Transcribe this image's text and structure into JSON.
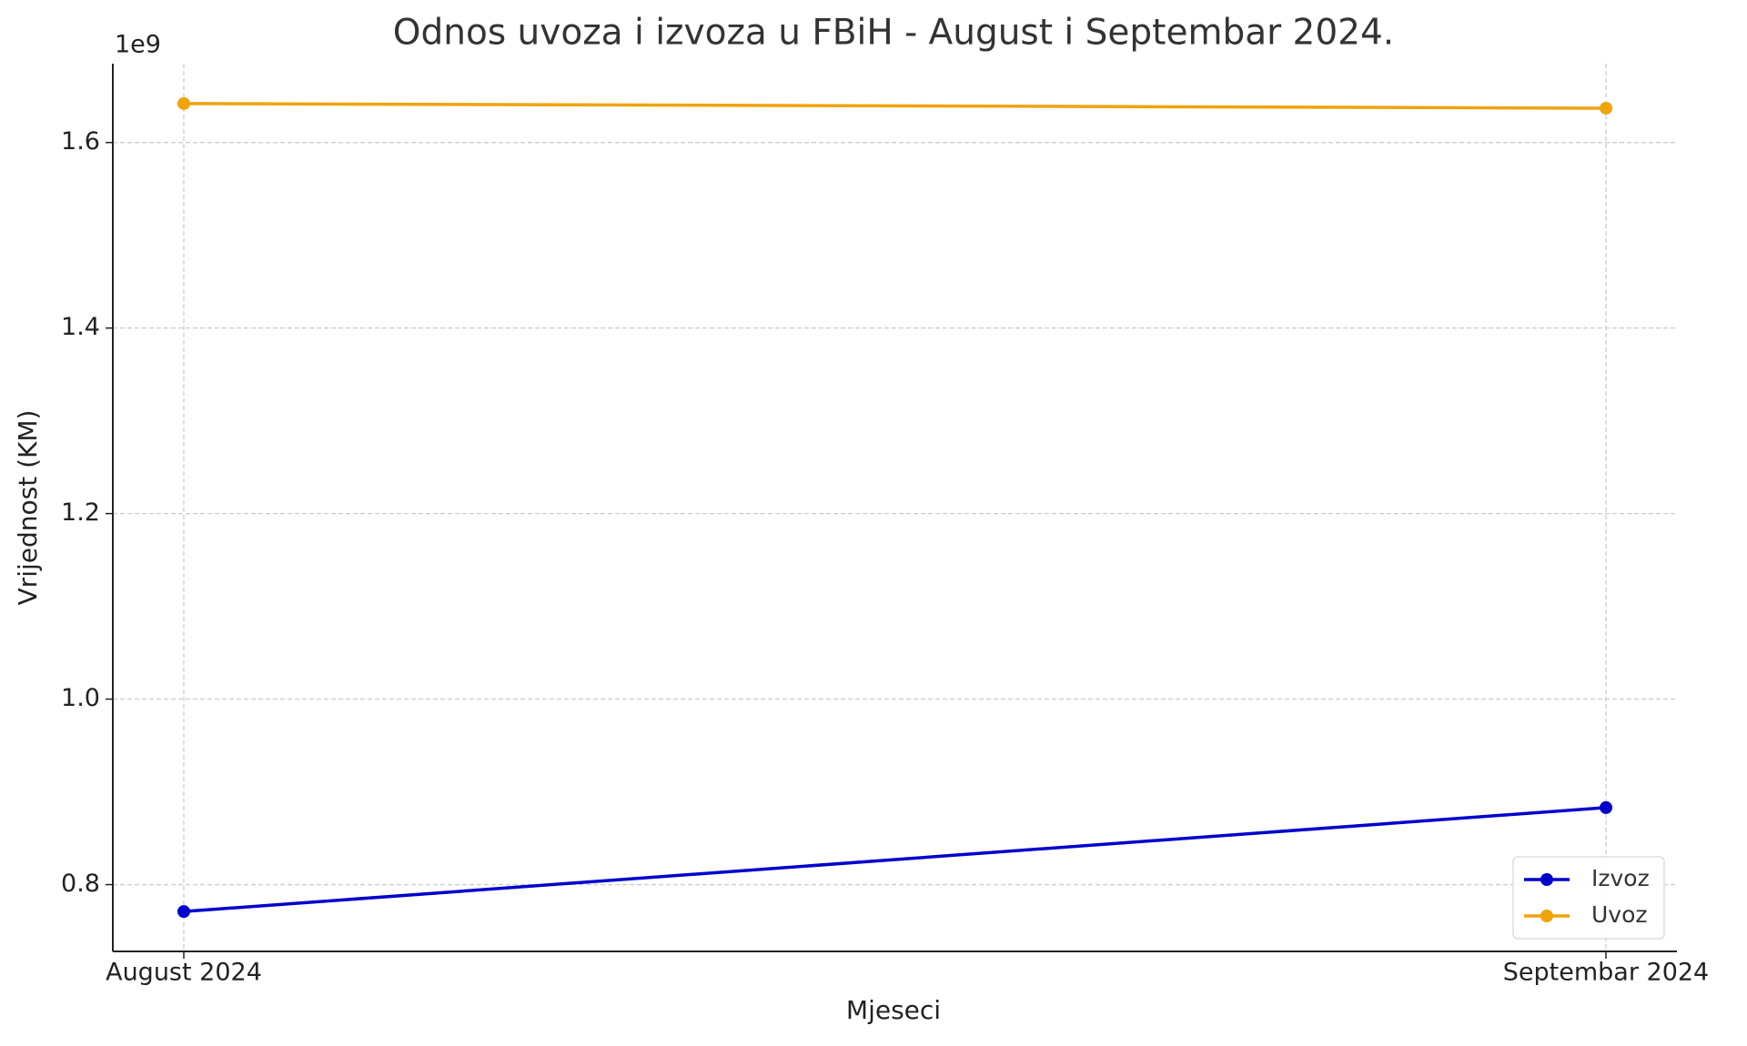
{
  "chart_data": {
    "type": "line",
    "title": "Odnos uvoza i izvoza u FBiH - August i Septembar 2024.",
    "x_label": "Mjeseci",
    "y_label": "Vrijednost (KM)",
    "y_offset_label": "1e9",
    "categories": [
      "August 2024",
      "Septembar 2024"
    ],
    "series": [
      {
        "name": "Izvoz",
        "color": "#0000cc",
        "values": [
          771000000,
          883000000
        ]
      },
      {
        "name": "Uvoz",
        "color": "#f0a30a",
        "values": [
          1642000000,
          1637000000
        ]
      }
    ],
    "ylim": [
      728000000,
      1685000000
    ],
    "yticks": [
      {
        "value": 800000000,
        "label": "0.8"
      },
      {
        "value": 1000000000,
        "label": "1.0"
      },
      {
        "value": 1200000000,
        "label": "1.2"
      },
      {
        "value": 1400000000,
        "label": "1.4"
      },
      {
        "value": 1600000000,
        "label": "1.6"
      }
    ],
    "grid": true,
    "legend": "lower right"
  }
}
